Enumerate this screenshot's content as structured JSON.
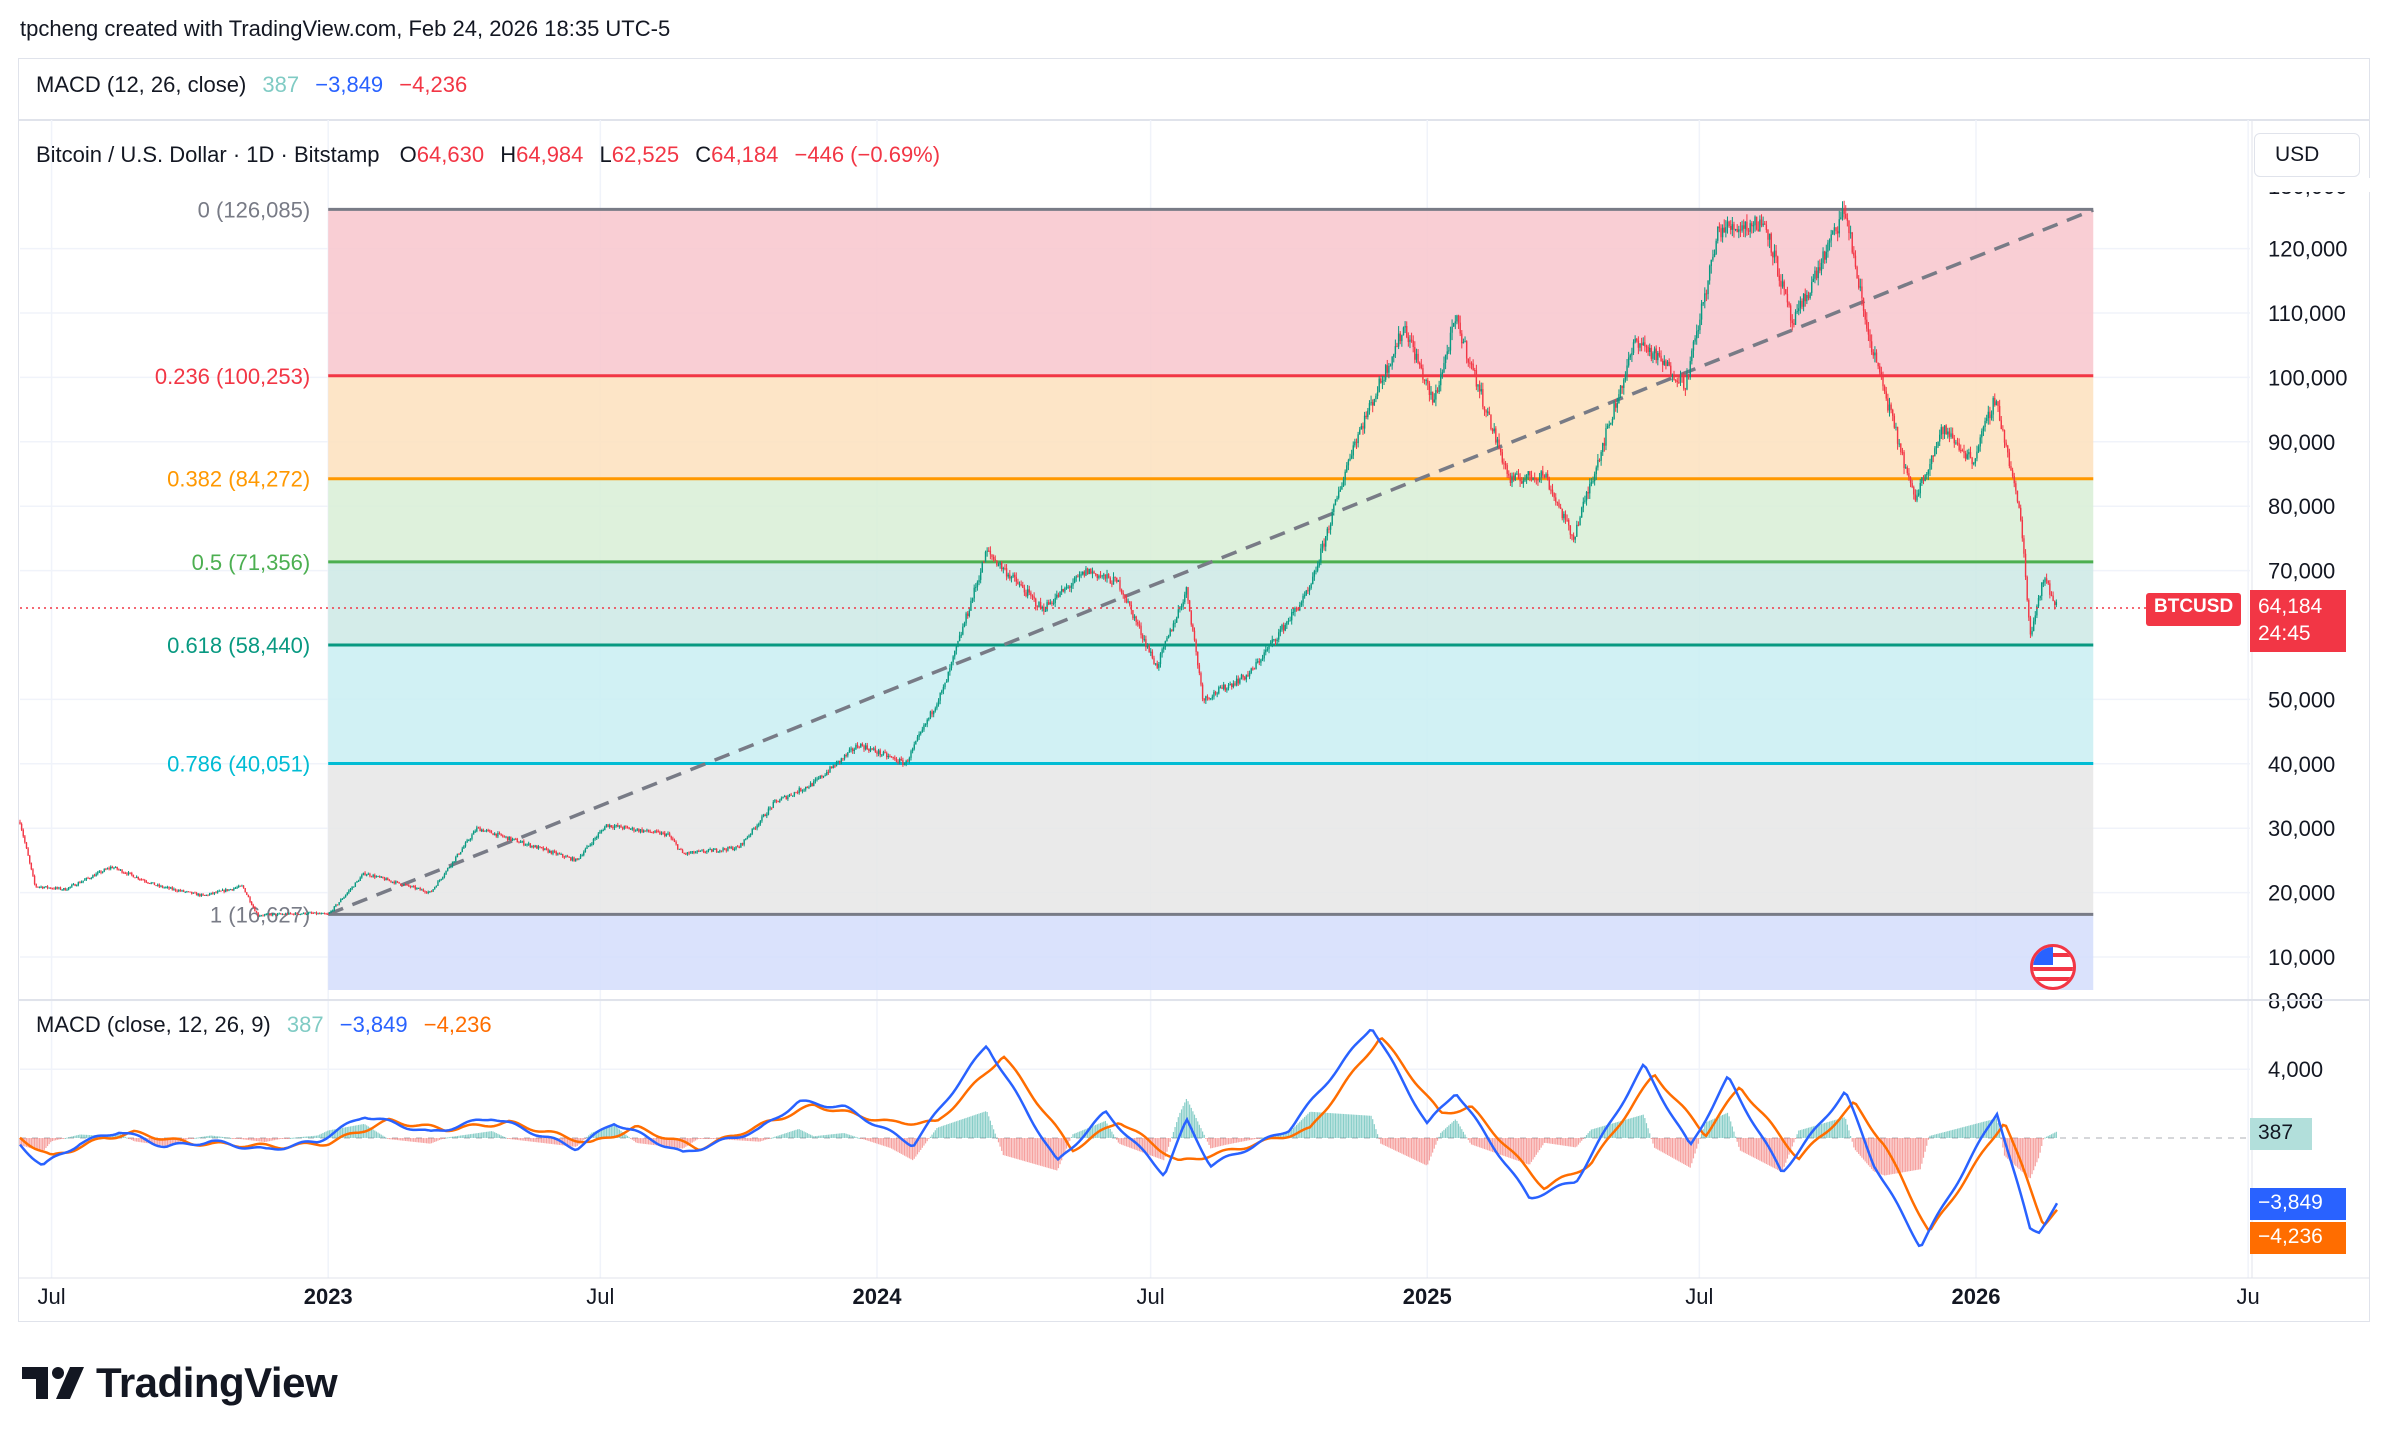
{
  "attribution": "tpcheng created with TradingView.com, Feb 24, 2026 18:35 UTC-5",
  "top_macd_header": {
    "title": "MACD (12, 26, close)",
    "hist": "387",
    "macd": "−3,849",
    "signal": "−4,236"
  },
  "symbol_header": {
    "name": "Bitcoin / U.S. Dollar · 1D · Bitstamp",
    "open_label": "O",
    "open": "64,630",
    "high_label": "H",
    "high": "64,984",
    "low_label": "L",
    "low": "62,525",
    "close_label": "C",
    "close": "64,184",
    "change": "−446 (−0.69%)"
  },
  "currency_button": "USD",
  "colors": {
    "up": "#089981",
    "down": "#f23645",
    "macd_line": "#2962ff",
    "signal_line": "#ff6d00",
    "hist_color": "#b2dfdb",
    "red_badge": "#f23645"
  },
  "price_badge": {
    "symbol": "BTCUSD",
    "price": "64,184",
    "countdown": "24:45"
  },
  "macd_header": {
    "title": "MACD (close, 12, 26, 9)",
    "hist": "387",
    "macd": "−3,849",
    "signal": "−4,236"
  },
  "macd_badges": {
    "hist": "387",
    "macd": "−3,849",
    "signal": "−4,236"
  },
  "logo": "TradingView",
  "chart_data": {
    "type": "candlestick",
    "symbol": "BTCUSD",
    "price_axis": {
      "ticks": [
        120000,
        110000,
        100000,
        90000,
        80000,
        70000,
        50000,
        40000,
        30000,
        20000,
        10000
      ],
      "tick_labels": [
        "120,000",
        "110,000",
        "100,000",
        "90,000",
        "80,000",
        "70,000",
        "50,000",
        "40,000",
        "30,000",
        "20,000",
        "10,000"
      ]
    },
    "macd_axis": {
      "ticks": [
        8000,
        4000
      ],
      "tick_labels": [
        "8,000",
        "4,000"
      ]
    },
    "time_axis": {
      "labels": [
        "Jul",
        "2023",
        "Jul",
        "2024",
        "Jul",
        "2025",
        "Jul",
        "2026",
        "Ju"
      ],
      "bold": [
        false,
        true,
        false,
        true,
        false,
        true,
        false,
        true,
        false
      ]
    },
    "fib_levels": [
      {
        "ratio": "0",
        "label": "0 (126,085)",
        "price": 126085,
        "color": "#787b86",
        "fill": "#f8c6cc"
      },
      {
        "ratio": "0.236",
        "label": "0.236 (100,253)",
        "price": 100253,
        "color": "#f23645",
        "fill": "#fde0bd"
      },
      {
        "ratio": "0.382",
        "label": "0.382 (84,272)",
        "price": 84272,
        "color": "#ff9800",
        "fill": "#d8efd6"
      },
      {
        "ratio": "0.5",
        "label": "0.5 (71,356)",
        "price": 71356,
        "color": "#4caf50",
        "fill": "#cde9e5"
      },
      {
        "ratio": "0.618",
        "label": "0.618 (58,440)",
        "price": 58440,
        "color": "#089981",
        "fill": "#c9eff2"
      },
      {
        "ratio": "0.786",
        "label": "0.786 (40,051)",
        "price": 40051,
        "color": "#00bcd4",
        "fill": "#e6e6e6"
      },
      {
        "ratio": "1",
        "label": "1 (16,627)",
        "price": 16627,
        "color": "#787b86",
        "fill": "#d3ddfc"
      }
    ],
    "trend_line": {
      "from": [
        "2023-01-01",
        16627
      ],
      "to": [
        "2026-03-20",
        126000
      ],
      "style": "dashed"
    },
    "price_path": [
      [
        "2022-06-10",
        31000
      ],
      [
        "2022-06-20",
        21000
      ],
      [
        "2022-07-10",
        20500
      ],
      [
        "2022-08-10",
        24000
      ],
      [
        "2022-09-10",
        21000
      ],
      [
        "2022-10-10",
        19500
      ],
      [
        "2022-11-05",
        21000
      ],
      [
        "2022-11-15",
        16500
      ],
      [
        "2022-12-20",
        16800
      ],
      [
        "2023-01-01",
        16600
      ],
      [
        "2023-01-25",
        23000
      ],
      [
        "2023-03-10",
        20000
      ],
      [
        "2023-04-10",
        30000
      ],
      [
        "2023-05-20",
        27000
      ],
      [
        "2023-06-15",
        25000
      ],
      [
        "2023-07-05",
        30500
      ],
      [
        "2023-08-15",
        29000
      ],
      [
        "2023-08-25",
        26000
      ],
      [
        "2023-10-01",
        27000
      ],
      [
        "2023-10-25",
        34000
      ],
      [
        "2023-11-20",
        37000
      ],
      [
        "2023-12-20",
        43000
      ],
      [
        "2024-01-20",
        40000
      ],
      [
        "2024-02-15",
        52000
      ],
      [
        "2024-03-14",
        73000
      ],
      [
        "2024-04-20",
        64000
      ],
      [
        "2024-05-20",
        70000
      ],
      [
        "2024-06-10",
        68000
      ],
      [
        "2024-07-05",
        55000
      ],
      [
        "2024-07-25",
        67000
      ],
      [
        "2024-08-05",
        50000
      ],
      [
        "2024-09-05",
        54000
      ],
      [
        "2024-10-15",
        67000
      ],
      [
        "2024-11-12",
        89000
      ],
      [
        "2024-12-17",
        108000
      ],
      [
        "2025-01-05",
        96000
      ],
      [
        "2025-01-20",
        109000
      ],
      [
        "2025-02-25",
        84000
      ],
      [
        "2025-03-20",
        85000
      ],
      [
        "2025-04-08",
        75000
      ],
      [
        "2025-05-20",
        106000
      ],
      [
        "2025-06-22",
        99000
      ],
      [
        "2025-07-14",
        123000
      ],
      [
        "2025-08-14",
        124000
      ],
      [
        "2025-09-01",
        108000
      ],
      [
        "2025-10-06",
        126085
      ],
      [
        "2025-10-20",
        108000
      ],
      [
        "2025-11-21",
        81000
      ],
      [
        "2025-12-10",
        92000
      ],
      [
        "2025-12-30",
        87000
      ],
      [
        "2026-01-14",
        97000
      ],
      [
        "2026-01-31",
        78000
      ],
      [
        "2026-02-06",
        60000
      ],
      [
        "2026-02-15",
        69000
      ],
      [
        "2026-02-24",
        64184
      ]
    ],
    "macd_path": [
      [
        "2022-06-10",
        -400
      ],
      [
        "2022-06-25",
        -1600
      ],
      [
        "2022-07-20",
        -300
      ],
      [
        "2022-08-15",
        400
      ],
      [
        "2022-09-15",
        -500
      ],
      [
        "2022-10-15",
        -200
      ],
      [
        "2022-11-20",
        -700
      ],
      [
        "2022-12-25",
        -200
      ],
      [
        "2023-01-25",
        1300
      ],
      [
        "2023-03-10",
        300
      ],
      [
        "2023-04-20",
        1200
      ],
      [
        "2023-06-15",
        -600
      ],
      [
        "2023-07-10",
        900
      ],
      [
        "2023-08-25",
        -900
      ],
      [
        "2023-10-15",
        500
      ],
      [
        "2023-11-10",
        2100
      ],
      [
        "2023-12-10",
        1800
      ],
      [
        "2024-01-25",
        -400
      ],
      [
        "2024-03-14",
        5400
      ],
      [
        "2024-04-30",
        -1400
      ],
      [
        "2024-06-01",
        1500
      ],
      [
        "2024-07-10",
        -2100
      ],
      [
        "2024-07-25",
        1000
      ],
      [
        "2024-08-10",
        -1600
      ],
      [
        "2024-10-01",
        500
      ],
      [
        "2024-11-25",
        6500
      ],
      [
        "2025-01-01",
        800
      ],
      [
        "2025-01-20",
        2700
      ],
      [
        "2025-03-10",
        -3500
      ],
      [
        "2025-04-10",
        -2500
      ],
      [
        "2025-05-25",
        4200
      ],
      [
        "2025-06-25",
        -500
      ],
      [
        "2025-07-20",
        3500
      ],
      [
        "2025-08-25",
        -2000
      ],
      [
        "2025-10-06",
        2700
      ],
      [
        "2025-10-25",
        -1500
      ],
      [
        "2025-11-25",
        -6300
      ],
      [
        "2026-01-15",
        1500
      ],
      [
        "2026-02-06",
        -5300
      ],
      [
        "2026-02-12",
        -5400
      ],
      [
        "2026-02-24",
        -3849
      ]
    ],
    "signal_path": [
      [
        "2022-06-10",
        0
      ],
      [
        "2022-07-01",
        -1100
      ],
      [
        "2022-08-05",
        0
      ],
      [
        "2022-08-25",
        300
      ],
      [
        "2022-10-01",
        -300
      ],
      [
        "2022-12-01",
        -500
      ],
      [
        "2023-01-01",
        -300
      ],
      [
        "2023-02-10",
        1000
      ],
      [
        "2023-03-20",
        500
      ],
      [
        "2023-05-01",
        900
      ],
      [
        "2023-06-25",
        -300
      ],
      [
        "2023-07-25",
        600
      ],
      [
        "2023-09-05",
        -600
      ],
      [
        "2023-11-20",
        1900
      ],
      [
        "2024-01-10",
        900
      ],
      [
        "2024-02-10",
        900
      ],
      [
        "2024-03-25",
        4800
      ],
      [
        "2024-05-10",
        -700
      ],
      [
        "2024-06-10",
        1000
      ],
      [
        "2024-07-20",
        -1400
      ],
      [
        "2024-08-20",
        -800
      ],
      [
        "2024-10-15",
        500
      ],
      [
        "2024-12-01",
        5900
      ],
      [
        "2025-01-10",
        1400
      ],
      [
        "2025-01-30",
        1800
      ],
      [
        "2025-03-20",
        -2900
      ],
      [
        "2025-04-20",
        -1500
      ],
      [
        "2025-06-01",
        3700
      ],
      [
        "2025-07-05",
        200
      ],
      [
        "2025-07-28",
        3000
      ],
      [
        "2025-09-05",
        -1200
      ],
      [
        "2025-10-12",
        2000
      ],
      [
        "2025-11-01",
        -400
      ],
      [
        "2025-12-01",
        -5500
      ],
      [
        "2026-01-20",
        1000
      ],
      [
        "2026-02-15",
        -5000
      ],
      [
        "2026-02-24",
        -4236
      ]
    ],
    "grid": true
  }
}
